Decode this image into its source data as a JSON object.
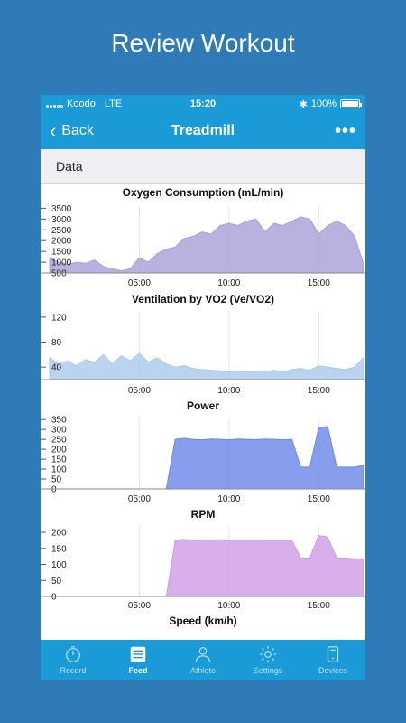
{
  "promo": {
    "title": "Review Workout"
  },
  "status": {
    "carrier": "Koodo",
    "network": "LTE",
    "time": "15:20",
    "battery": "100%",
    "battery_level": 1.0
  },
  "nav": {
    "back_label": "Back",
    "title": "Treadmill",
    "more_label": "•••"
  },
  "section": {
    "title": "Data"
  },
  "tabs": [
    {
      "label": "Record",
      "icon": "stopwatch-icon"
    },
    {
      "label": "Feed",
      "icon": "feed-icon"
    },
    {
      "label": "Athlete",
      "icon": "person-icon"
    },
    {
      "label": "Settings",
      "icon": "gear-icon"
    },
    {
      "label": "Devices",
      "icon": "devices-icon"
    }
  ],
  "colors": {
    "accent": "#1a9bd7",
    "background": "#2e7bb8",
    "vo2": "#a89fd8",
    "ve": "#a9c9ec",
    "power": "#6a86e8",
    "rpm": "#cf9be6"
  },
  "x_ticks": [
    "05:00",
    "10:00",
    "15:00"
  ],
  "chart_data": [
    {
      "type": "area",
      "title": "Oxygen Consumption (mL/min)",
      "ylim": [
        500,
        3600
      ],
      "y_ticks": [
        500,
        1000,
        1500,
        2000,
        2500,
        3000,
        3500
      ],
      "x": [
        0,
        1,
        2,
        3,
        4,
        5,
        6,
        7,
        8,
        9,
        10,
        11,
        12,
        13,
        14,
        15,
        16,
        17,
        18,
        19,
        20,
        21,
        22,
        23,
        24,
        25,
        26,
        27,
        28,
        29,
        30,
        31,
        32,
        33,
        34,
        35
      ],
      "values": [
        1200,
        1000,
        900,
        1000,
        950,
        1100,
        800,
        700,
        600,
        700,
        1200,
        1000,
        1400,
        1600,
        1700,
        2100,
        2200,
        2400,
        2300,
        2700,
        2800,
        2700,
        2900,
        3000,
        2400,
        2800,
        2700,
        2900,
        3100,
        3000,
        2300,
        2700,
        2900,
        2700,
        2200,
        900
      ],
      "x_tick_labels": [
        "05:00",
        "10:00",
        "15:00"
      ],
      "x_tick_minutes": [
        5,
        10,
        15
      ],
      "x_max_minutes": 17.5
    },
    {
      "type": "area",
      "title": "Ventilation by VO2  (Ve/VO2)",
      "ylim": [
        20,
        130
      ],
      "y_ticks": [
        40,
        80,
        120
      ],
      "values": [
        55,
        45,
        50,
        42,
        52,
        48,
        60,
        45,
        58,
        50,
        62,
        48,
        55,
        45,
        40,
        42,
        38,
        36,
        35,
        34,
        33,
        34,
        32,
        34,
        33,
        35,
        32,
        36,
        38,
        35,
        42,
        40,
        38,
        36,
        40,
        55
      ],
      "x_tick_labels": [
        "05:00",
        "10:00",
        "15:00"
      ],
      "x_tick_minutes": [
        5,
        10,
        15
      ],
      "x_max_minutes": 17.5
    },
    {
      "type": "area",
      "title": "Power",
      "ylim": [
        0,
        360
      ],
      "y_ticks": [
        0,
        50,
        100,
        150,
        200,
        250,
        300,
        350
      ],
      "values": [
        0,
        0,
        0,
        0,
        0,
        0,
        0,
        0,
        0,
        0,
        0,
        0,
        0,
        0,
        250,
        255,
        250,
        248,
        252,
        250,
        248,
        252,
        250,
        249,
        251,
        250,
        248,
        250,
        110,
        110,
        310,
        315,
        110,
        110,
        110,
        120
      ],
      "x_tick_labels": [
        "05:00",
        "10:00",
        "15:00"
      ],
      "x_tick_minutes": [
        5,
        10,
        15
      ],
      "x_max_minutes": 17.5
    },
    {
      "type": "area",
      "title": "RPM",
      "ylim": [
        0,
        220
      ],
      "y_ticks": [
        0,
        50,
        100,
        150,
        200
      ],
      "values": [
        0,
        0,
        0,
        0,
        0,
        0,
        0,
        0,
        0,
        0,
        0,
        0,
        0,
        0,
        175,
        178,
        176,
        177,
        176,
        177,
        176,
        175,
        176,
        177,
        176,
        176,
        176,
        175,
        120,
        120,
        190,
        185,
        120,
        120,
        118,
        118
      ],
      "x_tick_labels": [
        "05:00",
        "10:00",
        "15:00"
      ],
      "x_tick_minutes": [
        5,
        10,
        15
      ],
      "x_max_minutes": 17.5
    },
    {
      "type": "area",
      "title": "Speed (km/h)",
      "values": []
    }
  ]
}
